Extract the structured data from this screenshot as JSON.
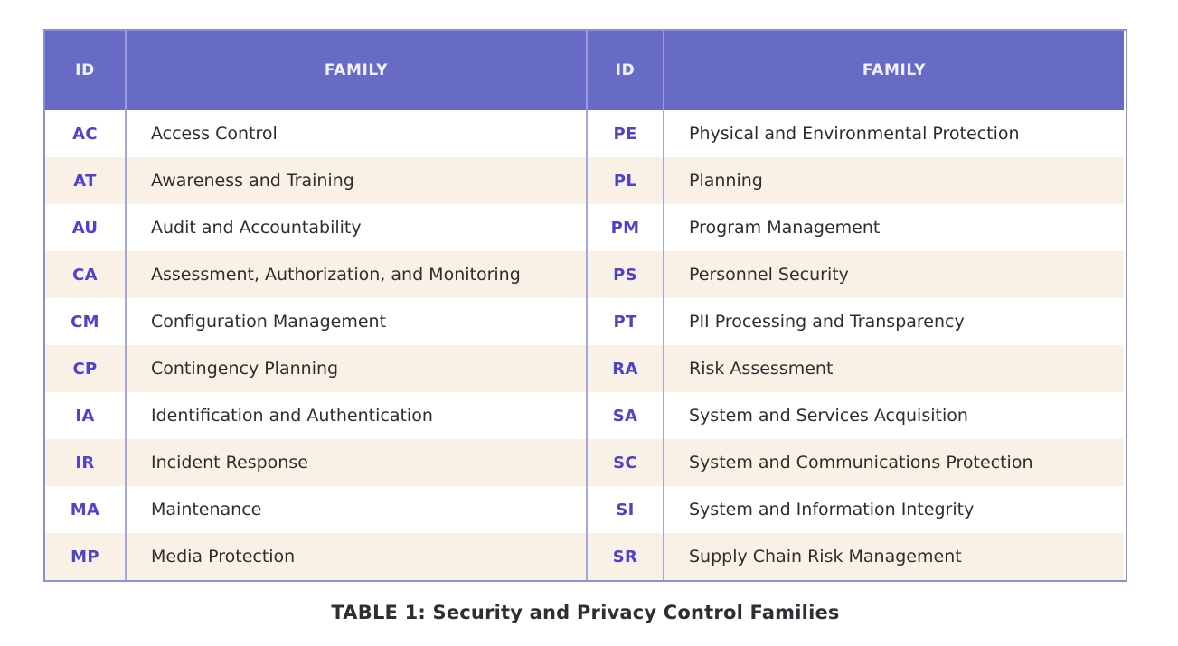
{
  "table": {
    "header": {
      "id_label_left": "ID",
      "family_label_left": "FAMILY",
      "id_label_right": "ID",
      "family_label_right": "FAMILY"
    },
    "rows": [
      {
        "left_id": "AC",
        "left_family": "Access Control",
        "right_id": "PE",
        "right_family": "Physical and Environmental Protection"
      },
      {
        "left_id": "AT",
        "left_family": "Awareness and Training",
        "right_id": "PL",
        "right_family": "Planning"
      },
      {
        "left_id": "AU",
        "left_family": "Audit and Accountability",
        "right_id": "PM",
        "right_family": "Program Management"
      },
      {
        "left_id": "CA",
        "left_family": "Assessment, Authorization, and Monitoring",
        "right_id": "PS",
        "right_family": "Personnel Security"
      },
      {
        "left_id": "CM",
        "left_family": "Configuration Management",
        "right_id": "PT",
        "right_family": "PII Processing and Transparency"
      },
      {
        "left_id": "CP",
        "left_family": "Contingency Planning",
        "right_id": "RA",
        "right_family": "Risk Assessment"
      },
      {
        "left_id": "IA",
        "left_family": "Identification and Authentication",
        "right_id": "SA",
        "right_family": "System and Services Acquisition"
      },
      {
        "left_id": "IR",
        "left_family": "Incident Response",
        "right_id": "SC",
        "right_family": "System and Communications Protection"
      },
      {
        "left_id": "MA",
        "left_family": "Maintenance",
        "right_id": "SI",
        "right_family": "System and Information Integrity"
      },
      {
        "left_id": "MP",
        "left_family": "Media Protection",
        "right_id": "SR",
        "right_family": "Supply Chain Risk Management"
      }
    ],
    "caption": "TABLE 1: Security and Privacy Control Families"
  },
  "colors": {
    "header_background": "#676bc6",
    "header_text": "#eef0fa",
    "stripe_background": "#faf1e6",
    "id_text": "#4f42cb",
    "family_text": "#2d2d2d",
    "border": "#8a8fd6",
    "divider": "#a2a7e1",
    "caption_text": "#2e2e34"
  }
}
